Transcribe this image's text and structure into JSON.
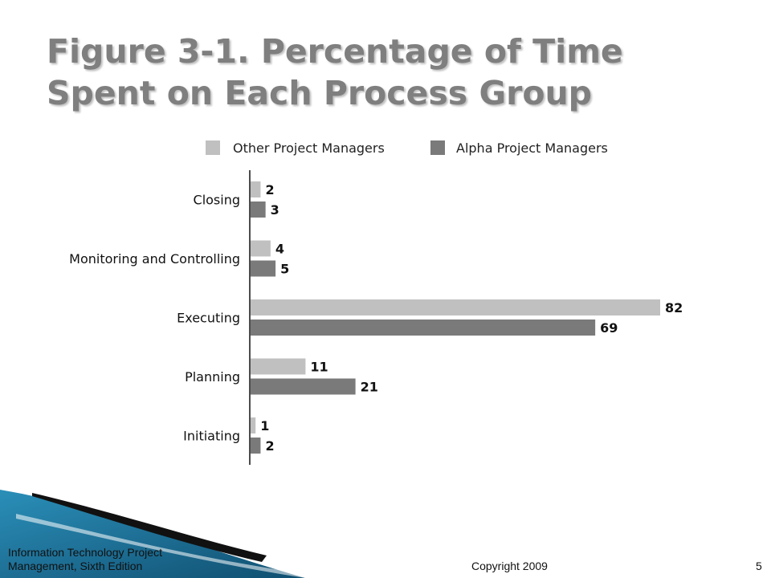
{
  "slide": {
    "title": "Figure 3-1. Percentage of Time\nSpent on Each Process Group",
    "footer_book": "Information Technology Project Management, Sixth Edition",
    "footer_copyright": "Copyright 2009",
    "page_number": "5"
  },
  "colors": {
    "other": "#c0c0c0",
    "alpha": "#7a7a7a",
    "title": "#7f7f7f",
    "decor_blue": "#1e6f95"
  },
  "chart_data": {
    "type": "bar",
    "orientation": "horizontal",
    "title": "Figure 3-1. Percentage of Time Spent on Each Process Group",
    "xlabel": "",
    "ylabel": "",
    "categories": [
      "Closing",
      "Monitoring and Controlling",
      "Executing",
      "Planning",
      "Initiating"
    ],
    "series": [
      {
        "name": "Other Project Managers",
        "values": [
          2,
          4,
          82,
          11,
          1
        ]
      },
      {
        "name": "Alpha Project Managers",
        "values": [
          3,
          5,
          69,
          21,
          2
        ]
      }
    ],
    "xlim": [
      0,
      82
    ],
    "grid": false,
    "legend_position": "top",
    "data_labels": true
  }
}
